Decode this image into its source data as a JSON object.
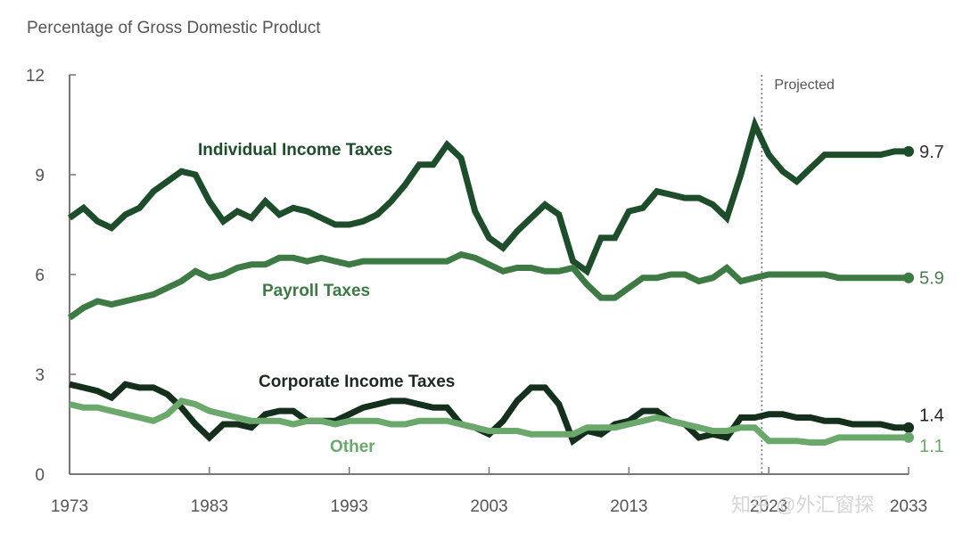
{
  "chart_data": {
    "type": "line",
    "title": "",
    "ylabel": "Percentage of Gross Domestic Product",
    "xlabel": "",
    "ylim": [
      0,
      12
    ],
    "xlim": [
      1973,
      2033
    ],
    "yticks": [
      0,
      3,
      6,
      9,
      12
    ],
    "ytick_labels": [
      "0",
      "3",
      "6",
      "9",
      "12"
    ],
    "xticks": [
      1973,
      1983,
      1993,
      2003,
      2013,
      2023,
      2033
    ],
    "xtick_labels": [
      "1973",
      "1983",
      "1993",
      "2003",
      "2013",
      "2023",
      "2033"
    ],
    "grid": false,
    "projection_start": 2022.5,
    "projection_label": "Projected",
    "x": [
      1973,
      1974,
      1975,
      1976,
      1977,
      1978,
      1979,
      1980,
      1981,
      1982,
      1983,
      1984,
      1985,
      1986,
      1987,
      1988,
      1989,
      1990,
      1991,
      1992,
      1993,
      1994,
      1995,
      1996,
      1997,
      1998,
      1999,
      2000,
      2001,
      2002,
      2003,
      2004,
      2005,
      2006,
      2007,
      2008,
      2009,
      2010,
      2011,
      2012,
      2013,
      2014,
      2015,
      2016,
      2017,
      2018,
      2019,
      2020,
      2021,
      2022,
      2023,
      2024,
      2025,
      2026,
      2027,
      2028,
      2029,
      2030,
      2031,
      2032,
      2033
    ],
    "series": [
      {
        "name": "Individual Income Taxes",
        "color": "#1e4d2b",
        "label_color": "#1e4d2b",
        "end_value_label": "9.7",
        "values": [
          7.7,
          8.0,
          7.6,
          7.4,
          7.8,
          8.0,
          8.5,
          8.8,
          9.1,
          9.0,
          8.2,
          7.6,
          7.9,
          7.7,
          8.2,
          7.8,
          8.0,
          7.9,
          7.7,
          7.5,
          7.5,
          7.6,
          7.8,
          8.2,
          8.7,
          9.3,
          9.3,
          9.9,
          9.5,
          7.9,
          7.1,
          6.8,
          7.3,
          7.7,
          8.1,
          7.8,
          6.4,
          6.1,
          7.1,
          7.1,
          7.9,
          8.0,
          8.5,
          8.4,
          8.3,
          8.3,
          8.1,
          7.7,
          9.0,
          10.5,
          9.6,
          9.1,
          8.8,
          9.2,
          9.6,
          9.6,
          9.6,
          9.6,
          9.6,
          9.7,
          9.7
        ]
      },
      {
        "name": "Payroll Taxes",
        "color": "#3d7a44",
        "label_color": "#3d7a44",
        "end_value_label": "5.9",
        "values": [
          4.7,
          5.0,
          5.2,
          5.1,
          5.2,
          5.3,
          5.4,
          5.6,
          5.8,
          6.1,
          5.9,
          6.0,
          6.2,
          6.3,
          6.3,
          6.5,
          6.5,
          6.4,
          6.5,
          6.4,
          6.3,
          6.4,
          6.4,
          6.4,
          6.4,
          6.4,
          6.4,
          6.4,
          6.6,
          6.5,
          6.3,
          6.1,
          6.2,
          6.2,
          6.1,
          6.1,
          6.2,
          5.7,
          5.3,
          5.3,
          5.6,
          5.9,
          5.9,
          6.0,
          6.0,
          5.8,
          5.9,
          6.2,
          5.8,
          5.9,
          6.0,
          6.0,
          6.0,
          6.0,
          6.0,
          5.9,
          5.9,
          5.9,
          5.9,
          5.9,
          5.9
        ]
      },
      {
        "name": "Corporate Income Taxes",
        "color": "#14301c",
        "label_color": "#1b2a20",
        "end_value_label": "1.4",
        "values": [
          2.7,
          2.6,
          2.5,
          2.3,
          2.7,
          2.6,
          2.6,
          2.4,
          2.0,
          1.5,
          1.1,
          1.5,
          1.5,
          1.4,
          1.8,
          1.9,
          1.9,
          1.6,
          1.6,
          1.6,
          1.8,
          2.0,
          2.1,
          2.2,
          2.2,
          2.1,
          2.0,
          2.0,
          1.5,
          1.4,
          1.2,
          1.6,
          2.2,
          2.6,
          2.6,
          2.1,
          1.0,
          1.3,
          1.2,
          1.5,
          1.6,
          1.9,
          1.9,
          1.6,
          1.5,
          1.1,
          1.2,
          1.1,
          1.7,
          1.7,
          1.8,
          1.8,
          1.7,
          1.7,
          1.6,
          1.6,
          1.5,
          1.5,
          1.5,
          1.4,
          1.4
        ]
      },
      {
        "name": "Other",
        "color": "#6aa96b",
        "label_color": "#6aa96b",
        "end_value_label": "1.1",
        "values": [
          2.1,
          2.0,
          2.0,
          1.9,
          1.8,
          1.7,
          1.6,
          1.8,
          2.2,
          2.1,
          1.9,
          1.8,
          1.7,
          1.6,
          1.6,
          1.6,
          1.5,
          1.6,
          1.6,
          1.5,
          1.6,
          1.6,
          1.6,
          1.5,
          1.5,
          1.6,
          1.6,
          1.6,
          1.5,
          1.4,
          1.3,
          1.3,
          1.3,
          1.2,
          1.2,
          1.2,
          1.2,
          1.4,
          1.4,
          1.4,
          1.5,
          1.6,
          1.7,
          1.6,
          1.5,
          1.4,
          1.3,
          1.3,
          1.4,
          1.4,
          1.0,
          1.0,
          1.0,
          0.95,
          0.95,
          1.1,
          1.1,
          1.1,
          1.1,
          1.1,
          1.1
        ]
      }
    ]
  },
  "watermark": "知乎 @外汇窗探"
}
